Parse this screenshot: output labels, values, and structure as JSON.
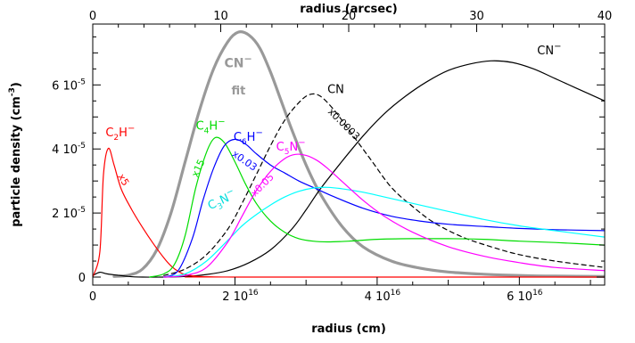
{
  "chart_data": {
    "type": "line",
    "xlabel": "radius (cm)",
    "x2label": "radius (arcsec)",
    "ylabel": "particle density (cm",
    "ylabel_sup": "-3",
    "ylabel_tail": ")",
    "xlim": [
      0,
      7.2
    ],
    "x2lim": [
      0,
      40
    ],
    "ylim": [
      -0.25,
      7.9
    ],
    "xticks": [
      {
        "v": 0,
        "m": "0",
        "e": ""
      },
      {
        "v": 2,
        "m": "2 10",
        "e": "16"
      },
      {
        "v": 4,
        "m": "4 10",
        "e": "16"
      },
      {
        "v": 6,
        "m": "6 10",
        "e": "16"
      }
    ],
    "x2ticks": [
      {
        "v": 0,
        "m": "0"
      },
      {
        "v": 10,
        "m": "10"
      },
      {
        "v": 20,
        "m": "20"
      },
      {
        "v": 30,
        "m": "30"
      },
      {
        "v": 40,
        "m": "40"
      }
    ],
    "yticks": [
      {
        "v": 0,
        "m": "0",
        "e": ""
      },
      {
        "v": 2,
        "m": "2 10",
        "e": "-5"
      },
      {
        "v": 4,
        "m": "4 10",
        "e": "-5"
      },
      {
        "v": 6,
        "m": "6 10",
        "e": "-5"
      }
    ],
    "series": [
      {
        "id": "cn-minus-fit",
        "color": "#999999",
        "width": 3.2,
        "dash": "",
        "x": [
          0.3,
          0.5,
          0.7,
          0.9,
          1.1,
          1.3,
          1.5,
          1.7,
          1.9,
          2.05,
          2.2,
          2.35,
          2.5,
          2.65,
          2.8,
          3.0,
          3.2,
          3.5,
          3.8,
          4.2,
          4.6,
          5.0,
          5.5,
          6.0,
          6.5,
          7.2
        ],
        "y": [
          0.02,
          0.06,
          0.25,
          0.85,
          2.0,
          3.6,
          5.2,
          6.5,
          7.35,
          7.65,
          7.55,
          7.15,
          6.4,
          5.5,
          4.6,
          3.5,
          2.6,
          1.6,
          0.95,
          0.5,
          0.28,
          0.16,
          0.09,
          0.05,
          0.03,
          0.02
        ]
      },
      {
        "id": "cn-minus",
        "color": "#000000",
        "width": 1.2,
        "dash": "",
        "x": [
          0,
          0.1,
          0.2,
          0.35,
          0.5,
          0.7,
          1.0,
          1.3,
          1.6,
          1.9,
          2.2,
          2.5,
          2.8,
          3.0,
          3.2,
          3.5,
          3.8,
          4.1,
          4.4,
          4.7,
          5.0,
          5.3,
          5.6,
          5.9,
          6.2,
          6.5,
          6.8,
          7.2
        ],
        "y": [
          0.05,
          0.15,
          0.1,
          0.06,
          0.02,
          0.0,
          0.0,
          0.02,
          0.08,
          0.2,
          0.45,
          0.85,
          1.5,
          2.1,
          2.75,
          3.6,
          4.4,
          5.1,
          5.65,
          6.1,
          6.45,
          6.65,
          6.75,
          6.7,
          6.5,
          6.2,
          5.9,
          5.5
        ]
      },
      {
        "id": "cn",
        "color": "#000000",
        "width": 1.2,
        "dash": "5,4",
        "x": [
          1.0,
          1.3,
          1.6,
          1.9,
          2.1,
          2.3,
          2.5,
          2.7,
          2.9,
          3.05,
          3.2,
          3.4,
          3.6,
          3.9,
          4.2,
          4.5,
          4.8,
          5.2,
          5.6,
          6.0,
          6.5,
          7.2
        ],
        "y": [
          0.05,
          0.25,
          0.7,
          1.5,
          2.3,
          3.2,
          4.1,
          4.9,
          5.45,
          5.7,
          5.65,
          5.2,
          4.6,
          3.7,
          2.8,
          2.2,
          1.7,
          1.25,
          0.95,
          0.7,
          0.5,
          0.3
        ]
      },
      {
        "id": "c2h-minus",
        "color": "#ff0000",
        "width": 1.2,
        "dash": "",
        "x": [
          0.0,
          0.1,
          0.15,
          0.22,
          0.3,
          0.4,
          0.55,
          0.7,
          0.85,
          1.0,
          1.1,
          1.2,
          1.3,
          1.5,
          2.0,
          3.0,
          4.0,
          5.0,
          6.0,
          7.2
        ],
        "y": [
          0.0,
          0.8,
          3.2,
          4.02,
          3.5,
          2.75,
          2.1,
          1.55,
          1.05,
          0.6,
          0.35,
          0.18,
          0.08,
          0.02,
          0.0,
          0.0,
          0.0,
          0.0,
          0.0,
          0.0
        ]
      },
      {
        "id": "c4h-minus",
        "color": "#00dd00",
        "width": 1.2,
        "dash": "",
        "x": [
          0.8,
          1.0,
          1.15,
          1.3,
          1.45,
          1.6,
          1.72,
          1.85,
          2.0,
          2.15,
          2.3,
          2.5,
          2.7,
          2.9,
          3.1,
          3.3,
          3.6,
          4.0,
          4.5,
          5.0,
          5.5,
          6.0,
          6.5,
          7.2
        ],
        "y": [
          0.0,
          0.1,
          0.4,
          1.3,
          2.8,
          3.9,
          4.35,
          4.2,
          3.6,
          2.9,
          2.3,
          1.75,
          1.4,
          1.2,
          1.12,
          1.1,
          1.12,
          1.18,
          1.2,
          1.2,
          1.18,
          1.12,
          1.08,
          1.0
        ]
      },
      {
        "id": "c6h-minus",
        "color": "#0000ff",
        "width": 1.2,
        "dash": "",
        "x": [
          1.0,
          1.2,
          1.4,
          1.55,
          1.7,
          1.85,
          2.0,
          2.15,
          2.3,
          2.5,
          2.7,
          2.9,
          3.1,
          3.4,
          3.8,
          4.2,
          4.6,
          5.0,
          5.5,
          6.0,
          6.5,
          7.2
        ],
        "y": [
          0.0,
          0.2,
          1.2,
          2.4,
          3.4,
          4.1,
          4.3,
          4.15,
          3.85,
          3.5,
          3.25,
          3.0,
          2.8,
          2.5,
          2.15,
          1.9,
          1.75,
          1.65,
          1.58,
          1.52,
          1.48,
          1.45
        ]
      },
      {
        "id": "c3n-minus",
        "color": "#00ffff",
        "width": 1.2,
        "dash": "",
        "x": [
          1.0,
          1.3,
          1.6,
          1.9,
          2.1,
          2.3,
          2.5,
          2.7,
          2.9,
          3.1,
          3.3,
          3.5,
          3.8,
          4.1,
          4.5,
          5.0,
          5.5,
          6.0,
          6.5,
          7.2
        ],
        "y": [
          0.0,
          0.1,
          0.5,
          1.15,
          1.6,
          1.95,
          2.25,
          2.5,
          2.68,
          2.78,
          2.8,
          2.76,
          2.65,
          2.5,
          2.3,
          2.05,
          1.8,
          1.6,
          1.45,
          1.25
        ]
      },
      {
        "id": "c5n-minus",
        "color": "#ff00ff",
        "width": 1.2,
        "dash": "",
        "x": [
          1.0,
          1.3,
          1.6,
          1.9,
          2.1,
          2.3,
          2.5,
          2.7,
          2.85,
          3.0,
          3.15,
          3.3,
          3.5,
          3.8,
          4.1,
          4.5,
          5.0,
          5.5,
          6.0,
          6.5,
          7.2
        ],
        "y": [
          0.0,
          0.05,
          0.3,
          1.1,
          1.9,
          2.7,
          3.3,
          3.7,
          3.83,
          3.8,
          3.65,
          3.4,
          3.0,
          2.4,
          1.9,
          1.4,
          0.95,
          0.65,
          0.45,
          0.3,
          0.2
        ]
      },
      {
        "id": "baseline",
        "color": "#ff0000",
        "width": 1.0,
        "dash": "",
        "x": [
          1.3,
          7.2
        ],
        "y": [
          0.0,
          0.0
        ]
      }
    ],
    "annotations": [
      {
        "id": "label-cn-minus",
        "x": 6.25,
        "y": 6.95,
        "color": "#000000",
        "rot": 0,
        "size": 13,
        "bold": false,
        "parts": [
          {
            "t": "CN"
          },
          {
            "t": "−",
            "sup": true
          }
        ]
      },
      {
        "id": "label-cn-minus-fit",
        "x": 1.85,
        "y": 6.55,
        "color": "#999999",
        "rot": 0,
        "size": 14,
        "bold": true,
        "parts": [
          {
            "t": "CN"
          },
          {
            "t": "−",
            "sup": true
          }
        ]
      },
      {
        "id": "label-fit",
        "x": 1.95,
        "y": 5.7,
        "color": "#999999",
        "rot": 0,
        "size": 13,
        "bold": true,
        "parts": [
          {
            "t": "fit"
          }
        ]
      },
      {
        "id": "label-cn",
        "x": 3.3,
        "y": 5.75,
        "color": "#000000",
        "rot": 0,
        "size": 13,
        "bold": false,
        "parts": [
          {
            "t": "CN"
          }
        ]
      },
      {
        "id": "label-cn-factor",
        "x": 3.3,
        "y": 5.15,
        "color": "#000000",
        "rot": 45,
        "size": 11,
        "bold": false,
        "parts": [
          {
            "t": "x0.0003"
          }
        ]
      },
      {
        "id": "label-c2h-minus",
        "x": 0.18,
        "y": 4.4,
        "color": "#ff0000",
        "rot": 0,
        "size": 13,
        "bold": false,
        "parts": [
          {
            "t": "C"
          },
          {
            "t": "2",
            "sub": true
          },
          {
            "t": "H"
          },
          {
            "t": "−",
            "sup": true
          }
        ]
      },
      {
        "id": "label-c2h-factor",
        "x": 0.35,
        "y": 3.15,
        "color": "#ff0000",
        "rot": 60,
        "size": 11,
        "bold": false,
        "parts": [
          {
            "t": "x5"
          }
        ]
      },
      {
        "id": "label-c4h-minus",
        "x": 1.45,
        "y": 4.6,
        "color": "#00dd00",
        "rot": 0,
        "size": 13,
        "bold": false,
        "parts": [
          {
            "t": "C"
          },
          {
            "t": "4",
            "sub": true
          },
          {
            "t": "H"
          },
          {
            "t": "−",
            "sup": true
          }
        ]
      },
      {
        "id": "label-c4h-factor",
        "x": 1.47,
        "y": 3.1,
        "color": "#00dd00",
        "rot": -65,
        "size": 11,
        "bold": false,
        "parts": [
          {
            "t": "x15"
          }
        ]
      },
      {
        "id": "label-c6h-minus",
        "x": 1.98,
        "y": 4.25,
        "color": "#0000ff",
        "rot": 0,
        "size": 13,
        "bold": false,
        "parts": [
          {
            "t": "C"
          },
          {
            "t": "6",
            "sub": true
          },
          {
            "t": "H"
          },
          {
            "t": "−",
            "sup": true
          }
        ]
      },
      {
        "id": "label-c6h-factor",
        "x": 1.95,
        "y": 3.8,
        "color": "#0000ff",
        "rot": 35,
        "size": 11,
        "bold": false,
        "parts": [
          {
            "t": "x0.03"
          }
        ]
      },
      {
        "id": "label-c5n-minus",
        "x": 2.58,
        "y": 3.95,
        "color": "#ff00ff",
        "rot": 0,
        "size": 13,
        "bold": false,
        "parts": [
          {
            "t": "C"
          },
          {
            "t": "5",
            "sub": true
          },
          {
            "t": "N"
          },
          {
            "t": "−",
            "sup": true
          }
        ]
      },
      {
        "id": "label-c5n-factor",
        "x": 2.28,
        "y": 2.5,
        "color": "#ff00ff",
        "rot": -45,
        "size": 11,
        "bold": false,
        "parts": [
          {
            "t": "x0.05"
          }
        ]
      },
      {
        "id": "label-c3n-minus",
        "x": 1.65,
        "y": 2.1,
        "color": "#00dddd",
        "rot": -25,
        "size": 13,
        "bold": false,
        "parts": [
          {
            "t": "C"
          },
          {
            "t": "3",
            "sub": true
          },
          {
            "t": "N"
          },
          {
            "t": "−",
            "sup": true
          }
        ]
      }
    ]
  }
}
